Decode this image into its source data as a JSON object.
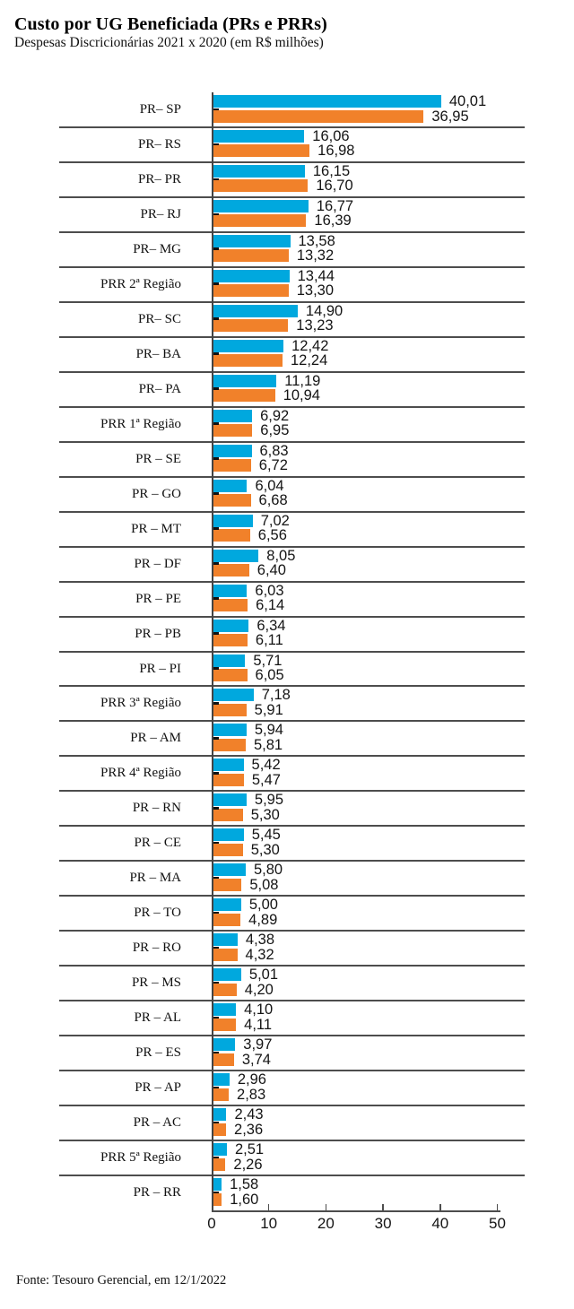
{
  "header": {
    "title": "Custo por UG Beneficiada (PRs e PRRs)",
    "subtitle": "Despesas Discricionárias 2021 x 2020 (em R$ milhões)"
  },
  "footer": {
    "source": "Fonte: Tesouro Gerencial, em 12/1/2022"
  },
  "colors": {
    "bar_2021": "#00a8de",
    "bar_2020": "#f1812a",
    "grid_line": "#4d4d4d",
    "text": "#141414"
  },
  "chart_data": {
    "type": "bar",
    "orientation": "horizontal",
    "title": "Custo por UG Beneficiada (PRs e PRRs)",
    "subtitle": "Despesas Discricionárias 2021 x 2020 (em R$ milhões)",
    "unit": "R$ milhões",
    "xlim": [
      0,
      50
    ],
    "x_ticks": [
      0,
      10,
      20,
      30,
      40,
      50
    ],
    "x_tick_labels": [
      "0",
      "10",
      "20",
      "30",
      "40",
      "50"
    ],
    "grid": false,
    "legend_position": "none",
    "categories": [
      "PR– SP",
      "PR– RS",
      "PR– PR",
      "PR– RJ",
      "PR– MG",
      "PRR 2ª Região",
      "PR– SC",
      "PR– BA",
      "PR– PA",
      "PRR 1ª Região",
      "PR – SE",
      "PR – GO",
      "PR – MT",
      "PR – DF",
      "PR – PE",
      "PR – PB",
      "PR – PI",
      "PRR 3ª Região",
      "PR – AM",
      "PRR 4ª Região",
      "PR – RN",
      "PR – CE",
      "PR – MA",
      "PR – TO",
      "PR – RO",
      "PR – MS",
      "PR – AL",
      "PR – ES",
      "PR – AP",
      "PR – AC",
      "PRR 5ª Região",
      "PR – RR"
    ],
    "series": [
      {
        "name": "2021",
        "color": "#00a8de",
        "values": [
          40.01,
          16.06,
          16.15,
          16.77,
          13.58,
          13.44,
          14.9,
          12.42,
          11.19,
          6.92,
          6.83,
          6.04,
          7.02,
          8.05,
          6.03,
          6.34,
          5.71,
          7.18,
          5.94,
          5.42,
          5.95,
          5.45,
          5.8,
          5.0,
          4.38,
          5.01,
          4.1,
          3.97,
          2.96,
          2.43,
          2.51,
          1.58
        ],
        "labels": [
          "40,01",
          "16,06",
          "16,15",
          "16,77",
          "13,58",
          "13,44",
          "14,90",
          "12,42",
          "11,19",
          "6,92",
          "6,83",
          "6,04",
          "7,02",
          "8,05",
          "6,03",
          "6,34",
          "5,71",
          "7,18",
          "5,94",
          "5,42",
          "5,95",
          "5,45",
          "5,80",
          "5,00",
          "4,38",
          "5,01",
          "4,10",
          "3,97",
          "2,96",
          "2,43",
          "2,51",
          "1,58"
        ]
      },
      {
        "name": "2020",
        "color": "#f1812a",
        "values": [
          36.95,
          16.98,
          16.7,
          16.39,
          13.32,
          13.3,
          13.23,
          12.24,
          10.94,
          6.95,
          6.72,
          6.68,
          6.56,
          6.4,
          6.14,
          6.11,
          6.05,
          5.91,
          5.81,
          5.47,
          5.3,
          5.3,
          5.08,
          4.89,
          4.32,
          4.2,
          4.11,
          3.74,
          2.83,
          2.36,
          2.26,
          1.6
        ],
        "labels": [
          "36,95",
          "16,98",
          "16,70",
          "16,39",
          "13,32",
          "13,30",
          "13,23",
          "12,24",
          "10,94",
          "6,95",
          "6,72",
          "6,68",
          "6,56",
          "6,40",
          "6,14",
          "6,11",
          "6,05",
          "5,91",
          "5,81",
          "5,47",
          "5,30",
          "5,30",
          "5,08",
          "4,89",
          "4,32",
          "4,20",
          "4,11",
          "3,74",
          "2,83",
          "2,36",
          "2,26",
          "1,60"
        ]
      }
    ]
  }
}
